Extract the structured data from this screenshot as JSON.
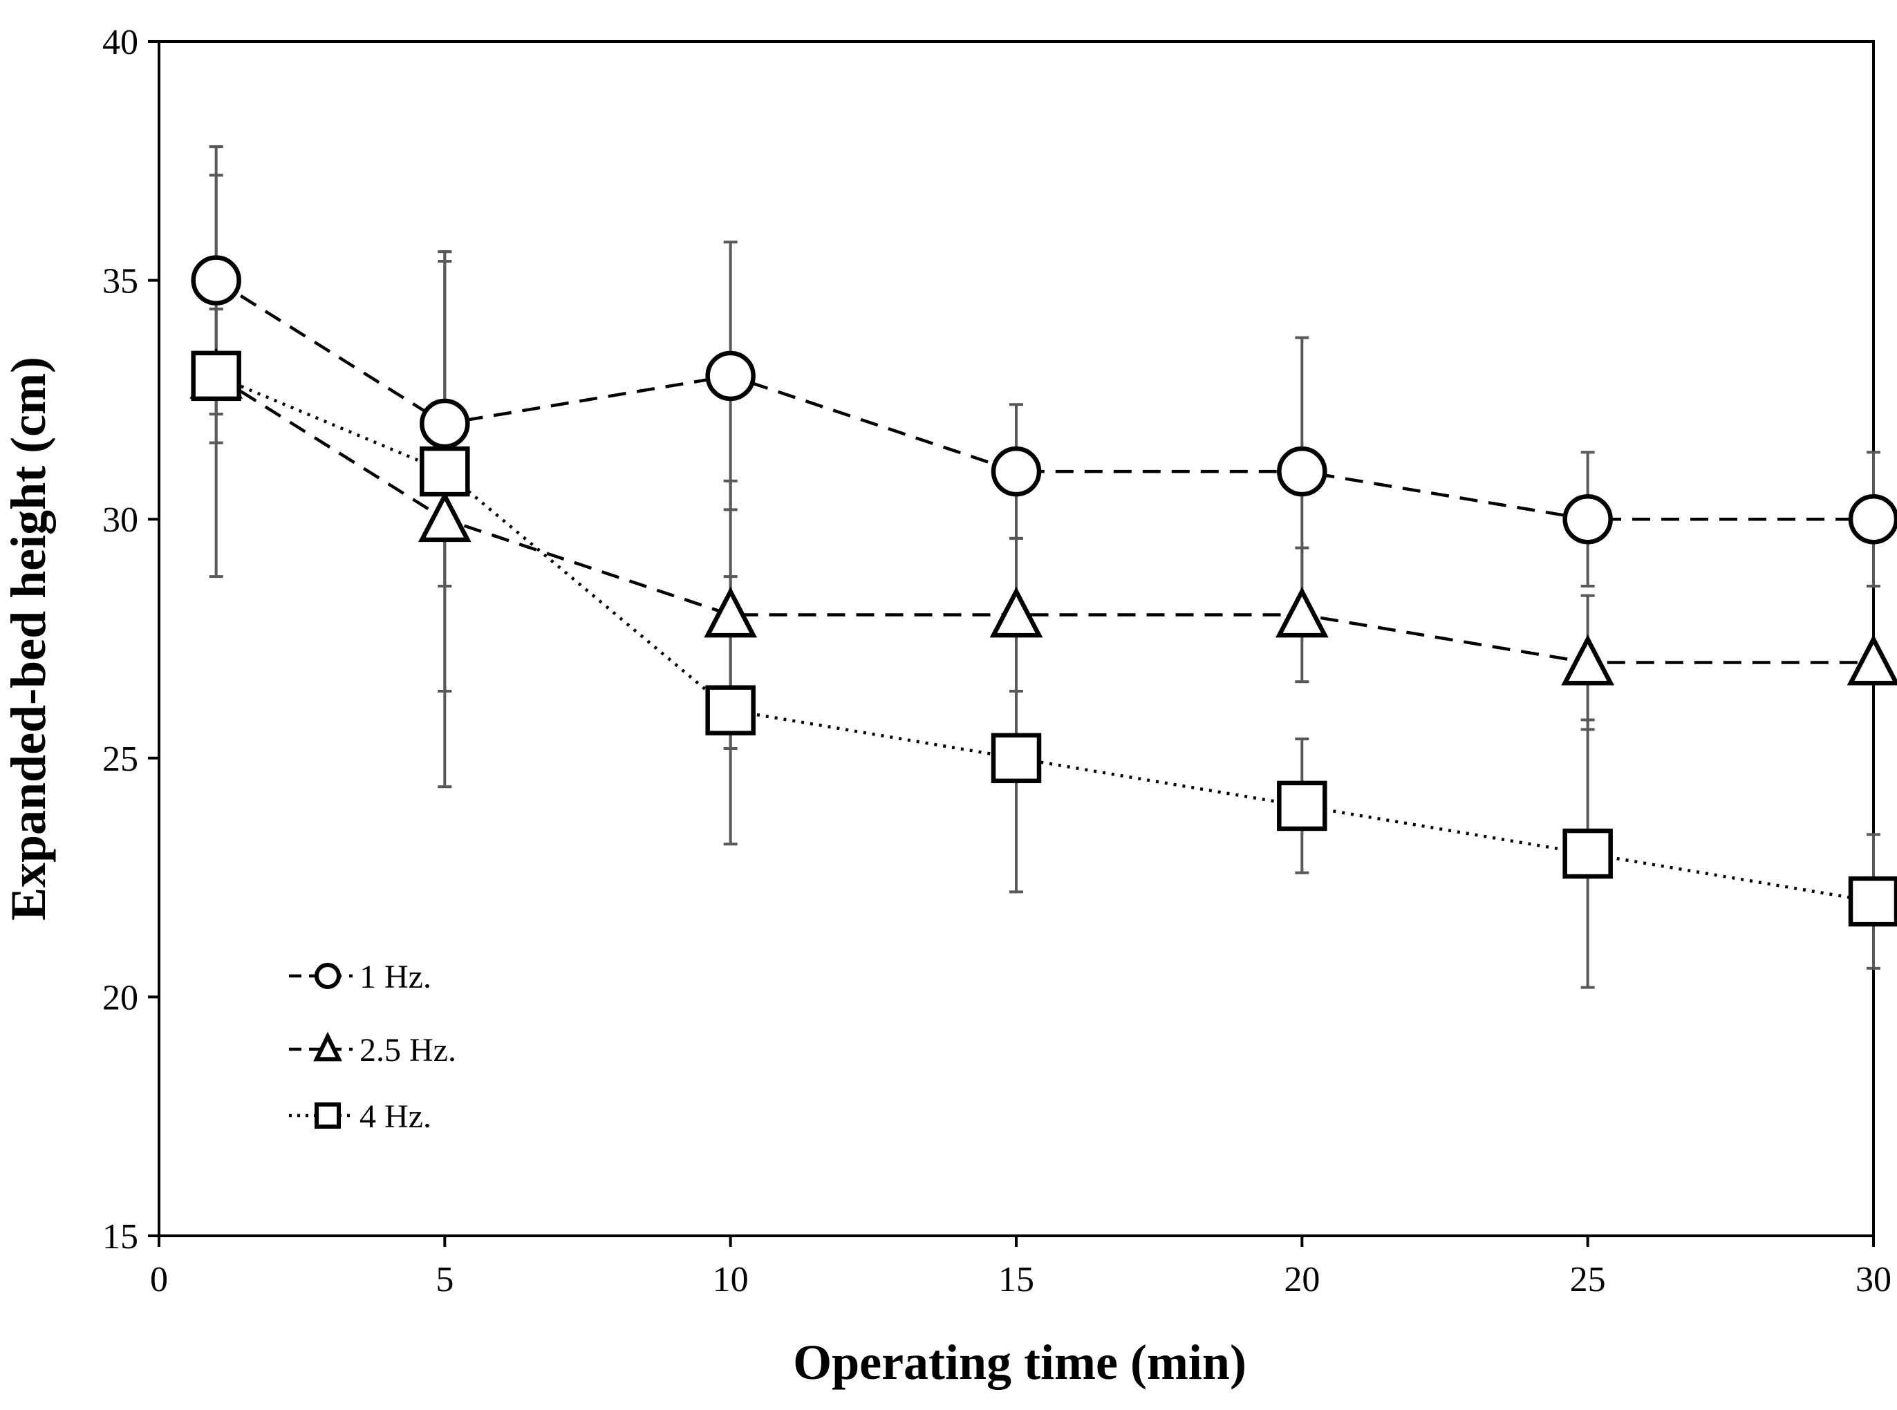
{
  "chart_data": {
    "type": "line",
    "title": "",
    "xlabel": "Operating time (min)",
    "ylabel": "Expanded-bed height (cm)",
    "xlim": [
      0,
      30
    ],
    "ylim": [
      15,
      40
    ],
    "x_ticks": [
      0,
      5,
      10,
      15,
      20,
      25,
      30
    ],
    "y_ticks": [
      15,
      20,
      25,
      30,
      35,
      40
    ],
    "grid": false,
    "legend_position": "bottom-left",
    "x": [
      1,
      5,
      10,
      15,
      20,
      25,
      30
    ],
    "series": [
      {
        "name": "1 Hz.",
        "marker": "circle",
        "line_style": "dashed",
        "values": [
          35,
          32,
          33,
          31,
          31,
          30,
          30
        ],
        "error": [
          2.8,
          3.4,
          2.8,
          1.4,
          2.8,
          1.4,
          1.4
        ]
      },
      {
        "name": "2.5 Hz.",
        "marker": "triangle",
        "line_style": "dashed",
        "values": [
          33,
          30,
          28,
          28,
          28,
          27,
          27
        ],
        "error": [
          4.2,
          5.6,
          2.8,
          1.6,
          1.4,
          1.4,
          0
        ]
      },
      {
        "name": "4 Hz.",
        "marker": "square",
        "line_style": "dotted",
        "values": [
          33,
          31,
          26,
          25,
          24,
          23,
          22
        ],
        "error": [
          1.4,
          4.6,
          2.8,
          2.8,
          1.4,
          2.8,
          1.4
        ]
      }
    ]
  }
}
